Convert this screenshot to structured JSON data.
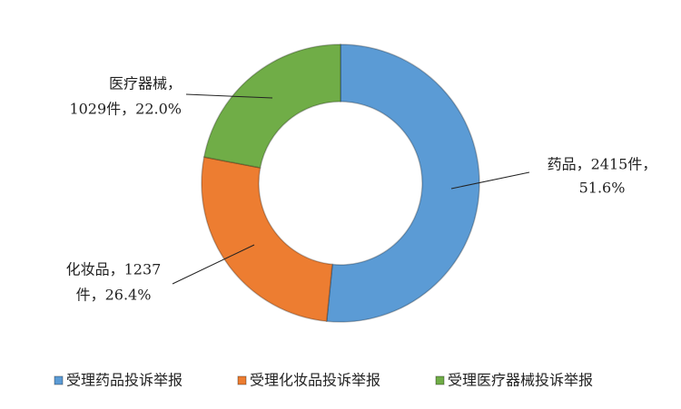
{
  "chart_data": {
    "type": "pie",
    "donut": true,
    "categories": [
      "受理药品投诉举报",
      "受理化妆品投诉举报",
      "受理医疗器械投诉举报"
    ],
    "values": [
      2415,
      1237,
      1029
    ],
    "value_labels": [
      [
        "药品，2415件，",
        "51.6%"
      ],
      [
        "化妆品，1237",
        "件，26.4%"
      ],
      [
        "医疗器械，",
        "1029件，22.0%"
      ]
    ],
    "colors": [
      "#5b9bd5",
      "#ed7d31",
      "#70ad47"
    ],
    "legend": "bottom"
  }
}
